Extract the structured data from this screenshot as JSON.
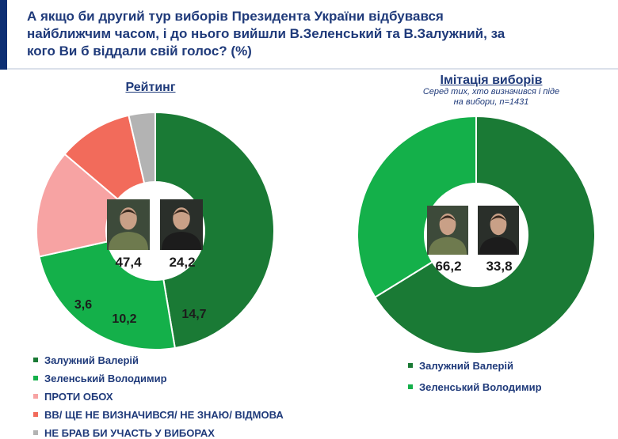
{
  "header": {
    "title": "А якщо би другий тур виборів Президента України відбувався найближчим часом, і до нього вийшли В.Зеленський та В.Залужний, за кого Ви б віддали свій голос? (%)"
  },
  "colors": {
    "zaluzhnyi": "#1a7a35",
    "zelenskyi": "#14b04a",
    "against_both": "#f7a3a3",
    "undecided": "#f26b5b",
    "not_voting": "#b3b3b3",
    "title": "#1f3a7a",
    "accent": "#0d2f73"
  },
  "chart_data": [
    {
      "type": "pie",
      "title": "Рейтинг",
      "labels": [
        "Залужний Валерій",
        "Зеленський Володимир",
        "ПРОТИ ОБОХ",
        "ВВ/ ЩЕ НЕ ВИЗНАЧИВСЯ/ НЕ ЗНАЮ/ ВІДМОВА",
        "НЕ БРАВ БИ УЧАСТЬ У ВИБОРАХ"
      ],
      "values": [
        47.4,
        24.2,
        14.7,
        10.2,
        3.6
      ],
      "value_labels": [
        "47,4",
        "24,2",
        "14,7",
        "10,2",
        "3,6"
      ],
      "colors": [
        "#1a7a35",
        "#14b04a",
        "#f7a3a3",
        "#f26b5b",
        "#b3b3b3"
      ],
      "donut": true
    },
    {
      "type": "pie",
      "title": "Імітація виборів",
      "subtitle": "Серед тих, хто визначився і піде на вибори, n=1431",
      "labels": [
        "Залужний Валерій",
        "Зеленський Володимир"
      ],
      "values": [
        66.2,
        33.8
      ],
      "value_labels": [
        "66,2",
        "33,8"
      ],
      "colors": [
        "#1a7a35",
        "#14b04a"
      ],
      "donut": true
    }
  ],
  "icons": [
    "zaluzhnyi-photo",
    "zelenskyi-photo"
  ]
}
